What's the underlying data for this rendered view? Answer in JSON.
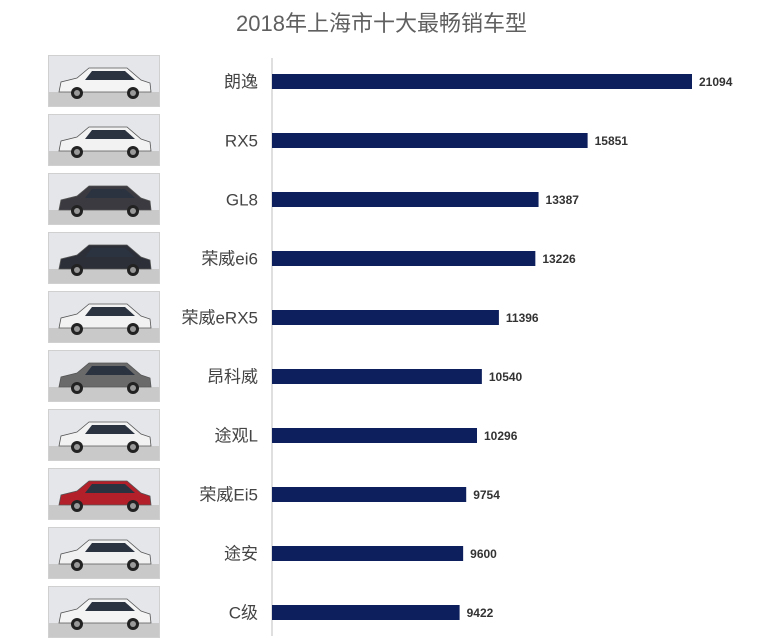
{
  "chart_data": {
    "type": "bar",
    "orientation": "horizontal",
    "title": "2018年上海市十大最畅销车型",
    "categories": [
      "朗逸",
      "RX5",
      "GL8",
      "荣威ei6",
      "荣威eRX5",
      "昂科威",
      "途观L",
      "荣威Ei5",
      "途安",
      "C级"
    ],
    "values": [
      21094,
      15851,
      13387,
      13226,
      11396,
      10540,
      10296,
      9754,
      9600,
      9422
    ],
    "xlim": [
      0,
      22000
    ],
    "grid": false,
    "legend": "none",
    "bar_color": "#0d1f5c",
    "thumbnail_icons": [
      "sedan-white-photo",
      "suv-white-photo",
      "mpv-dark-photo",
      "sedan-dark-photo",
      "suv-white-photo",
      "suv-grey-photo",
      "suv-white-photo",
      "hatchback-red-photo",
      "mpv-white-photo",
      "sedan-white-photo"
    ]
  }
}
